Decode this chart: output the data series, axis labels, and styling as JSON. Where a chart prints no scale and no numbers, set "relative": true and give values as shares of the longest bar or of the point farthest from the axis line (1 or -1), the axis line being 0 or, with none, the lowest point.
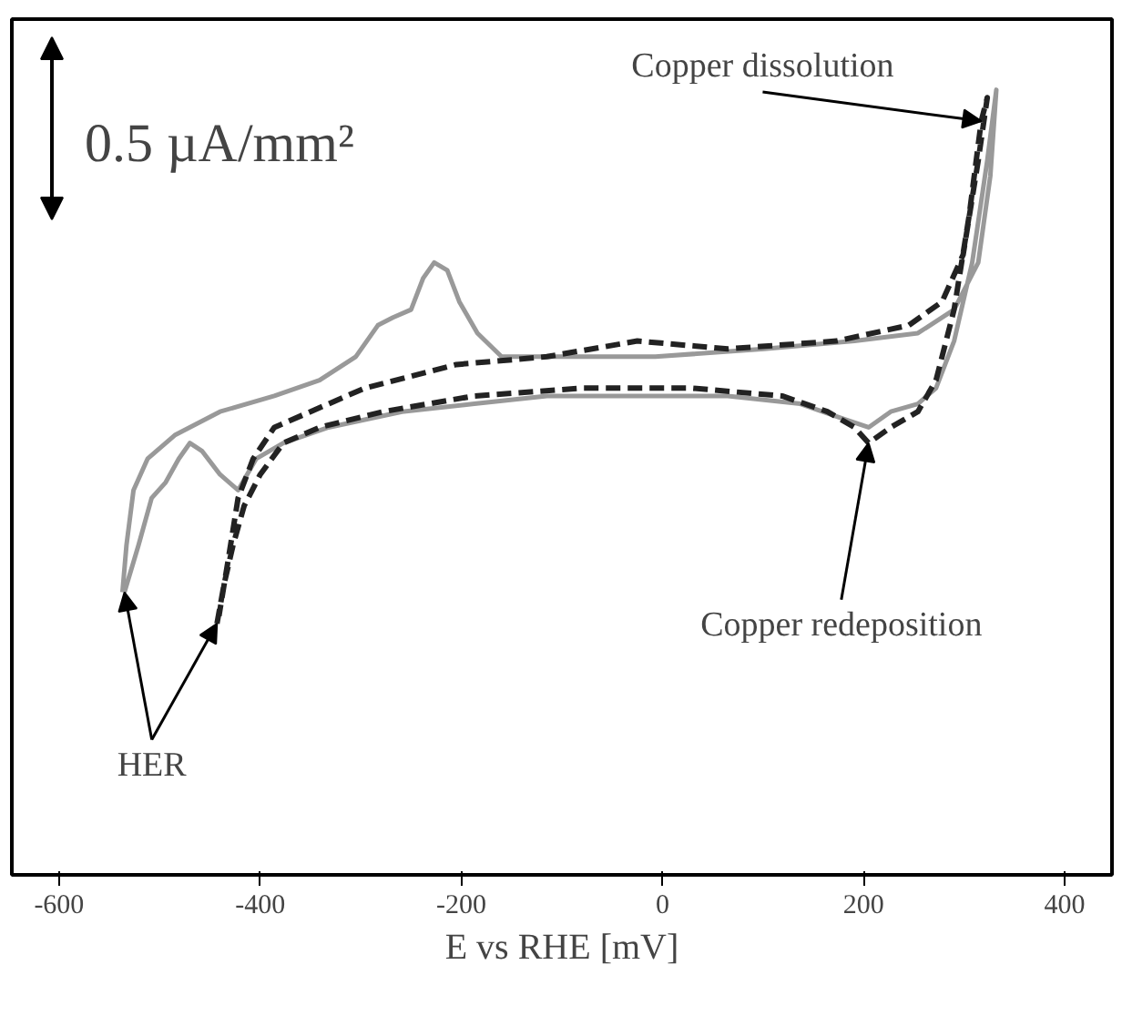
{
  "chart_data": {
    "type": "line",
    "relative": true,
    "xlabel": "E vs RHE [mV]",
    "xlim": [
      -647,
      447
    ],
    "xticks": [
      -600,
      -400,
      -200,
      0,
      200,
      400
    ],
    "grid": false,
    "series": [
      {
        "color": "#999999",
        "line_style": "solid",
        "x": [
          -535,
          -521,
          -508,
          -494,
          -481,
          -470,
          -458,
          -440,
          -422,
          -404,
          -377,
          -332,
          -259,
          -187,
          -115,
          -25,
          65,
          137,
          182,
          205,
          227,
          254,
          272,
          290,
          308,
          323,
          332,
          326,
          314,
          290,
          254,
          191,
          101,
          -7,
          -115,
          -160,
          -184,
          -202,
          -214,
          -227,
          -238,
          -250,
          -268,
          -283,
          -305,
          -341,
          -386,
          -440,
          -485,
          -512,
          -526,
          -533,
          -537
        ],
        "values": [
          0.36,
          0.42,
          0.48,
          0.5,
          0.53,
          0.55,
          0.54,
          0.51,
          0.49,
          0.53,
          0.55,
          0.57,
          0.59,
          0.6,
          0.61,
          0.61,
          0.61,
          0.6,
          0.58,
          0.57,
          0.59,
          0.6,
          0.62,
          0.68,
          0.78,
          0.91,
          1.0,
          0.89,
          0.78,
          0.72,
          0.69,
          0.68,
          0.67,
          0.66,
          0.66,
          0.66,
          0.69,
          0.73,
          0.77,
          0.78,
          0.76,
          0.72,
          0.71,
          0.7,
          0.66,
          0.63,
          0.61,
          0.59,
          0.56,
          0.53,
          0.49,
          0.42,
          0.36
        ]
      },
      {
        "color": "#222222",
        "line_style": "dashed",
        "x": [
          -443,
          -436,
          -427,
          -416,
          -400,
          -377,
          -341,
          -278,
          -187,
          -79,
          29,
          119,
          164,
          191,
          205,
          227,
          254,
          272,
          290,
          305,
          317,
          323,
          314,
          299,
          278,
          245,
          173,
          65,
          -25,
          -115,
          -205,
          -296,
          -350,
          -386,
          -407,
          -422,
          -432,
          -441
        ],
        "values": [
          0.32,
          0.37,
          0.42,
          0.47,
          0.51,
          0.55,
          0.57,
          0.59,
          0.61,
          0.62,
          0.62,
          0.61,
          0.59,
          0.57,
          0.55,
          0.57,
          0.59,
          0.63,
          0.72,
          0.84,
          0.96,
          0.99,
          0.91,
          0.79,
          0.73,
          0.7,
          0.68,
          0.67,
          0.68,
          0.66,
          0.65,
          0.62,
          0.59,
          0.57,
          0.53,
          0.48,
          0.4,
          0.33
        ]
      }
    ],
    "annotations": [
      "0.5 µA/mm²",
      {
        "text": "Copper dissolution",
        "x": 317,
        "y": 0.96
      },
      {
        "text": "Copper redeposition",
        "x": 205,
        "y": 0.55
      },
      {
        "text": "HER",
        "x": -535,
        "y": 0.36
      }
    ]
  }
}
